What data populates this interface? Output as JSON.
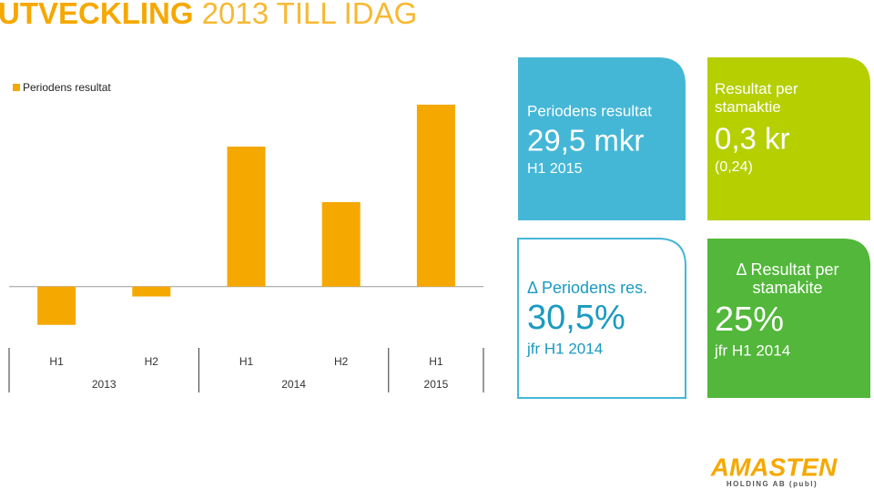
{
  "title": {
    "lead": "UTVECKLING",
    "rest": "2013 TILL IDAG"
  },
  "chart_data": {
    "type": "bar",
    "categories": [
      "H1",
      "H2",
      "H1",
      "H2",
      "H1"
    ],
    "years": [
      "2013",
      "2013",
      "2014",
      "2014",
      "2015"
    ],
    "series": [
      {
        "name": "Periodens resultat",
        "color": "#f5a800",
        "values": [
          -6.2,
          -1.6,
          22.7,
          13.7,
          29.5
        ]
      }
    ],
    "ylim": [
      -12,
      32
    ]
  },
  "tiles": [
    {
      "heading": "Periodens resultat",
      "value": "29,5 mkr",
      "note": "H1 2015"
    },
    {
      "heading": "Resultat per stamaktie",
      "value": "0,3 kr",
      "note": "(0,24)"
    },
    {
      "heading": "Δ Periodens res.",
      "value": "30,5%",
      "note": "jfr H1 2014"
    },
    {
      "heading": "Δ Resultat per stamakite",
      "value": "25%",
      "note": "jfr H1 2014"
    }
  ],
  "logo": {
    "name": "AMASTEN",
    "sub": "HOLDING AB (publ)"
  }
}
